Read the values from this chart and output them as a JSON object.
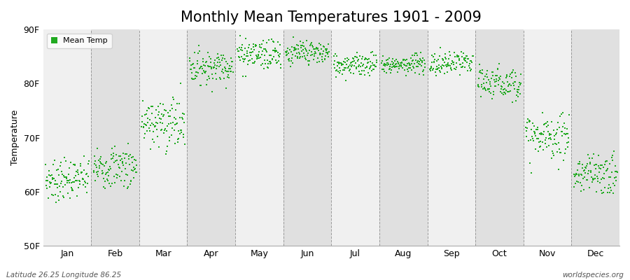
{
  "title": "Monthly Mean Temperatures 1901 - 2009",
  "ylabel": "Temperature",
  "xlabel_months": [
    "Jan",
    "Feb",
    "Mar",
    "Apr",
    "May",
    "Jun",
    "Jul",
    "Aug",
    "Sep",
    "Oct",
    "Nov",
    "Dec"
  ],
  "ylim": [
    50,
    90
  ],
  "yticks": [
    50,
    60,
    70,
    80,
    90
  ],
  "ytick_labels": [
    "50F",
    "60F",
    "70F",
    "80F",
    "90F"
  ],
  "legend_label": "Mean Temp",
  "dot_color": "#22aa22",
  "bg_color": "#ffffff",
  "band_color_a": "#f0f0f0",
  "band_color_b": "#e0e0e0",
  "dashed_line_color": "#888888",
  "footer_left": "Latitude 26.25 Longitude 86.25",
  "footer_right": "worldspecies.org",
  "title_fontsize": 15,
  "axis_fontsize": 9,
  "n_years": 109,
  "monthly_mean_F": [
    62.0,
    64.5,
    72.5,
    83.0,
    85.5,
    85.5,
    83.5,
    83.5,
    83.5,
    80.0,
    70.0,
    63.0
  ],
  "monthly_std_F": [
    1.8,
    2.0,
    2.5,
    1.5,
    1.5,
    1.2,
    1.0,
    1.0,
    1.2,
    1.5,
    2.0,
    2.0
  ],
  "monthly_trend_F": [
    0.005,
    0.003,
    0.004,
    0.003,
    0.002,
    0.002,
    0.002,
    0.002,
    0.003,
    0.003,
    0.003,
    0.004
  ]
}
